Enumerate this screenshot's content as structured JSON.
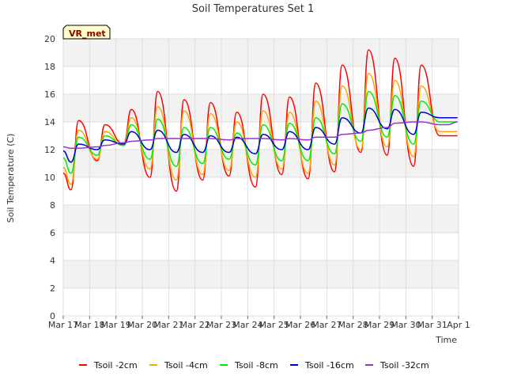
{
  "chart_data": {
    "type": "line",
    "title": "Soil Temperatures Set 1",
    "xlabel": "Time",
    "ylabel": "Soil Temperature (C)",
    "badge": "VR_met",
    "xlim": [
      "2024-03-17",
      "2024-04-01"
    ],
    "ylim": [
      0,
      20
    ],
    "x_ticks": [
      "Mar 17",
      "Mar 18",
      "Mar 19",
      "Mar 20",
      "Mar 21",
      "Mar 22",
      "Mar 23",
      "Mar 24",
      "Mar 25",
      "Mar 26",
      "Mar 27",
      "Mar 28",
      "Mar 29",
      "Mar 30",
      "Mar 31",
      "Apr 1"
    ],
    "y_ticks": [
      0,
      2,
      4,
      6,
      8,
      10,
      12,
      14,
      16,
      18,
      20
    ],
    "grid": true,
    "legend_position": "bottom",
    "x": [
      "2024-03-17 00:00",
      "2024-03-17 07:00",
      "2024-03-17 14:00",
      "2024-03-18 07:00",
      "2024-03-18 14:00",
      "2024-03-19 07:00",
      "2024-03-19 14:00",
      "2024-03-20 07:00",
      "2024-03-20 14:00",
      "2024-03-21 07:00",
      "2024-03-21 14:00",
      "2024-03-22 07:00",
      "2024-03-22 14:00",
      "2024-03-23 07:00",
      "2024-03-23 14:00",
      "2024-03-24 07:00",
      "2024-03-24 14:00",
      "2024-03-25 07:00",
      "2024-03-25 14:00",
      "2024-03-26 07:00",
      "2024-03-26 14:00",
      "2024-03-27 07:00",
      "2024-03-27 14:00",
      "2024-03-28 07:00",
      "2024-03-28 14:00",
      "2024-03-29 07:00",
      "2024-03-29 14:00",
      "2024-03-30 07:00",
      "2024-03-30 14:00",
      "2024-03-31 07:00",
      "2024-03-31 14:00",
      "2024-03-31 23:00"
    ],
    "series": [
      {
        "name": "Tsoil -2cm",
        "color": "#ff0000",
        "values": [
          10.3,
          9.1,
          14.1,
          11.2,
          13.8,
          12.4,
          14.9,
          10.0,
          16.2,
          9.0,
          15.6,
          9.8,
          15.4,
          10.1,
          14.7,
          9.3,
          16.0,
          10.2,
          15.8,
          9.9,
          16.8,
          10.4,
          18.1,
          11.8,
          19.2,
          11.6,
          18.6,
          10.8,
          18.1,
          13.0,
          13.0,
          13.0
        ]
      },
      {
        "name": "Tsoil -4cm",
        "color": "#ffa500",
        "values": [
          10.7,
          9.5,
          13.4,
          11.3,
          13.3,
          12.3,
          14.3,
          10.6,
          15.1,
          9.8,
          14.8,
          10.2,
          14.6,
          10.5,
          14.0,
          10.0,
          14.8,
          10.6,
          14.7,
          10.3,
          15.5,
          10.9,
          16.6,
          12.0,
          17.5,
          12.2,
          17.0,
          11.5,
          16.6,
          13.3,
          13.3,
          13.3
        ]
      },
      {
        "name": "Tsoil -8cm",
        "color": "#00ee00",
        "values": [
          11.4,
          10.3,
          12.9,
          11.6,
          13.0,
          12.3,
          13.8,
          11.3,
          14.2,
          10.8,
          13.6,
          11.0,
          13.6,
          11.3,
          13.2,
          10.9,
          13.8,
          11.2,
          13.9,
          11.2,
          14.3,
          11.7,
          15.3,
          12.6,
          16.2,
          12.9,
          15.9,
          12.4,
          15.5,
          14.0,
          14.0,
          14.0
        ]
      },
      {
        "name": "Tsoil -16cm",
        "color": "#0000cc",
        "values": [
          11.9,
          11.1,
          12.4,
          12.0,
          12.7,
          12.4,
          13.3,
          12.0,
          13.4,
          11.8,
          13.1,
          11.8,
          13.0,
          11.8,
          12.9,
          11.7,
          13.1,
          12.0,
          13.3,
          12.0,
          13.6,
          12.4,
          14.3,
          13.2,
          15.0,
          13.5,
          14.9,
          13.1,
          14.7,
          14.3,
          14.3,
          14.3
        ]
      },
      {
        "name": "Tsoil -32cm",
        "color": "#9933cc",
        "values": [
          12.2,
          12.1,
          12.1,
          12.2,
          12.3,
          12.5,
          12.6,
          12.7,
          12.8,
          12.8,
          12.8,
          12.8,
          12.8,
          12.7,
          12.8,
          12.8,
          12.8,
          12.7,
          12.8,
          12.7,
          12.9,
          12.9,
          13.1,
          13.2,
          13.4,
          13.6,
          13.9,
          14.0,
          14.0,
          13.8,
          13.8,
          14.0
        ]
      }
    ]
  }
}
